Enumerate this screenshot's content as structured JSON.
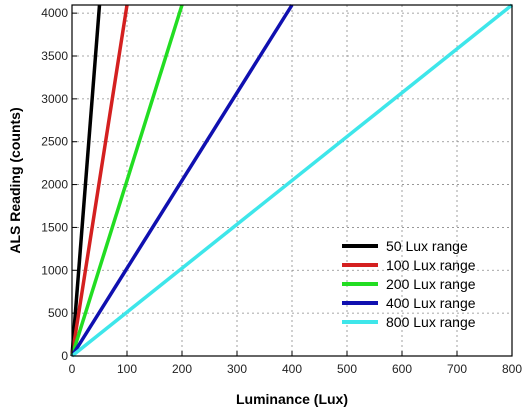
{
  "chart_data": {
    "type": "line",
    "xlabel": "Luminance (Lux)",
    "ylabel": "ALS Reading (counts)",
    "xlim": [
      0,
      800
    ],
    "ylim": [
      0,
      4095
    ],
    "xticks": [
      0,
      100,
      200,
      300,
      400,
      500,
      600,
      700,
      800
    ],
    "yticks": [
      0,
      500,
      1000,
      1500,
      2000,
      2500,
      3000,
      3500,
      4000
    ],
    "grid": true,
    "legend_position": "bottom-right",
    "series": [
      {
        "name": "50 Lux range",
        "color": "#000000",
        "x": [
          0,
          50
        ],
        "y": [
          0,
          4095
        ]
      },
      {
        "name": "100 Lux range",
        "color": "#d42020",
        "x": [
          0,
          100
        ],
        "y": [
          0,
          4095
        ]
      },
      {
        "name": "200 Lux range",
        "color": "#22dd22",
        "x": [
          0,
          200
        ],
        "y": [
          0,
          4095
        ]
      },
      {
        "name": "400 Lux range",
        "color": "#1010b0",
        "x": [
          0,
          400
        ],
        "y": [
          0,
          4095
        ]
      },
      {
        "name": "800 Lux range",
        "color": "#3ee6ea",
        "x": [
          0,
          800
        ],
        "y": [
          0,
          4095
        ]
      }
    ]
  }
}
